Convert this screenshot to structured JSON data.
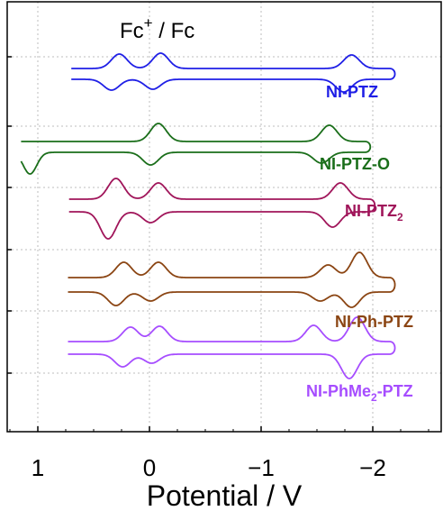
{
  "chart_data": {
    "type": "line",
    "title": "",
    "xlabel": "Potential / V",
    "ylabel": "",
    "x_axis_reversed": true,
    "xlim": [
      1.3,
      -2.55
    ],
    "xticks": [
      1,
      0,
      -1,
      -2
    ],
    "xtick_labels": [
      "1",
      "0",
      "−1",
      "−2"
    ],
    "grid": true,
    "reference_label": {
      "main": "Fc",
      "sup": "+",
      "rest": " / Fc"
    },
    "series": [
      {
        "name": "NI-PTZ",
        "label_main": "NI-PTZ",
        "label_sub": "",
        "label_rest": "",
        "color": "#1f1fe6",
        "x_range": [
          0.7,
          -2.15
        ],
        "baseline": 0.0,
        "peaks": [
          {
            "x": 0.3,
            "anodic": 16,
            "cathodic": 12
          },
          {
            "x": -0.07,
            "anodic": 17,
            "cathodic": 11
          },
          {
            "x": -1.78,
            "anodic": 15,
            "cathodic": 14
          }
        ]
      },
      {
        "name": "NI-PTZ-O",
        "label_main": "NI-PTZ-O",
        "label_sub": "",
        "label_rest": "",
        "color": "#1a6e1a",
        "x_range": [
          1.15,
          -1.93
        ],
        "baseline": 0.0,
        "peaks": [
          {
            "x": -0.05,
            "anodic": 20,
            "cathodic": 14
          },
          {
            "x": -1.58,
            "anodic": 18,
            "cathodic": 12
          }
        ],
        "reduction_shoulder": {
          "x": 1.07,
          "depth": 24
        }
      },
      {
        "name": "NI-PTZ2",
        "label_main": "NI-PTZ",
        "label_sub": "2",
        "label_rest": "",
        "color": "#a0155a",
        "x_range": [
          0.72,
          -1.97
        ],
        "baseline": 0.0,
        "peaks": [
          {
            "x": 0.33,
            "anodic": 23,
            "cathodic": 30
          },
          {
            "x": -0.05,
            "anodic": 18,
            "cathodic": 12
          },
          {
            "x": -1.68,
            "anodic": 18,
            "cathodic": 17
          }
        ]
      },
      {
        "name": "NI-Ph-PTZ",
        "label_main": "NI-Ph-PTZ",
        "label_sub": "",
        "label_rest": "",
        "color": "#8b4513",
        "x_range": [
          0.73,
          -2.15
        ],
        "baseline": 0.0,
        "peaks": [
          {
            "x": 0.26,
            "anodic": 17,
            "cathodic": 15
          },
          {
            "x": -0.05,
            "anodic": 17,
            "cathodic": 10
          },
          {
            "x": -1.57,
            "anodic": 14,
            "cathodic": 10
          },
          {
            "x": -1.85,
            "anodic": 28,
            "cathodic": 17
          }
        ]
      },
      {
        "name": "NI-PhMe2-PTZ",
        "label_main": "NI-PhMe",
        "label_sub": "2",
        "label_rest": "-PTZ",
        "color": "#a64dff",
        "x_range": [
          0.73,
          -2.15
        ],
        "baseline": 0.0,
        "peaks": [
          {
            "x": 0.2,
            "anodic": 16,
            "cathodic": 14
          },
          {
            "x": -0.06,
            "anodic": 17,
            "cathodic": 10
          },
          {
            "x": -1.44,
            "anodic": 18,
            "cathodic": 0
          },
          {
            "x": -1.83,
            "anodic": 27,
            "cathodic": 27
          }
        ]
      }
    ]
  }
}
